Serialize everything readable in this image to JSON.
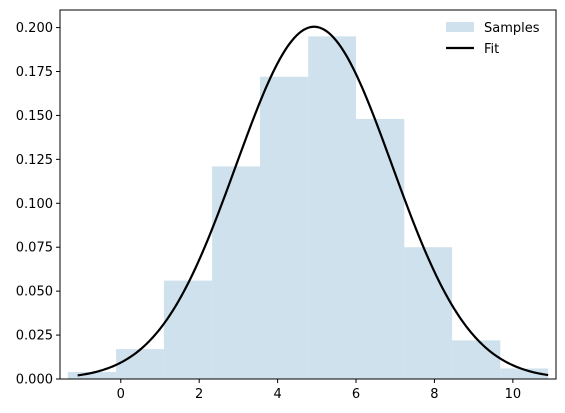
{
  "chart_data": {
    "type": "bar",
    "title": "",
    "xlabel": "",
    "ylabel": "",
    "xlim": [
      -1.55,
      11.1
    ],
    "ylim": [
      0,
      0.21
    ],
    "grid": false,
    "legend_position": "top-right",
    "xticks": [
      0,
      2,
      4,
      6,
      8,
      10
    ],
    "xtick_labels": [
      "0",
      "2",
      "4",
      "6",
      "8",
      "10"
    ],
    "yticks": [
      0,
      0.025,
      0.05,
      0.075,
      0.1,
      0.125,
      0.15,
      0.175,
      0.2
    ],
    "ytick_labels": [
      "0.000",
      "0.025",
      "0.050",
      "0.075",
      "0.100",
      "0.125",
      "0.150",
      "0.175",
      "0.200"
    ],
    "histogram": {
      "name": "Samples",
      "color": "#cfe1ed",
      "bins": [
        {
          "x0": -1.35,
          "x1": -0.12,
          "value": 0.004
        },
        {
          "x0": -0.12,
          "x1": 1.1,
          "value": 0.017
        },
        {
          "x0": 1.1,
          "x1": 2.33,
          "value": 0.056
        },
        {
          "x0": 2.33,
          "x1": 3.55,
          "value": 0.121
        },
        {
          "x0": 3.55,
          "x1": 4.78,
          "value": 0.172
        },
        {
          "x0": 4.78,
          "x1": 6.0,
          "value": 0.195
        },
        {
          "x0": 6.0,
          "x1": 7.23,
          "value": 0.148
        },
        {
          "x0": 7.23,
          "x1": 8.45,
          "value": 0.075
        },
        {
          "x0": 8.45,
          "x1": 9.68,
          "value": 0.022
        },
        {
          "x0": 9.68,
          "x1": 10.9,
          "value": 0.006
        }
      ]
    },
    "fit_curve": {
      "name": "Fit",
      "color": "#000000",
      "distribution": "normal",
      "mean": 4.93,
      "std": 1.99,
      "x_range": [
        -1.1,
        10.9
      ]
    },
    "legend": [
      {
        "label": "Samples",
        "kind": "patch",
        "color": "#cfe1ed"
      },
      {
        "label": "Fit",
        "kind": "line",
        "color": "#000000"
      }
    ]
  }
}
